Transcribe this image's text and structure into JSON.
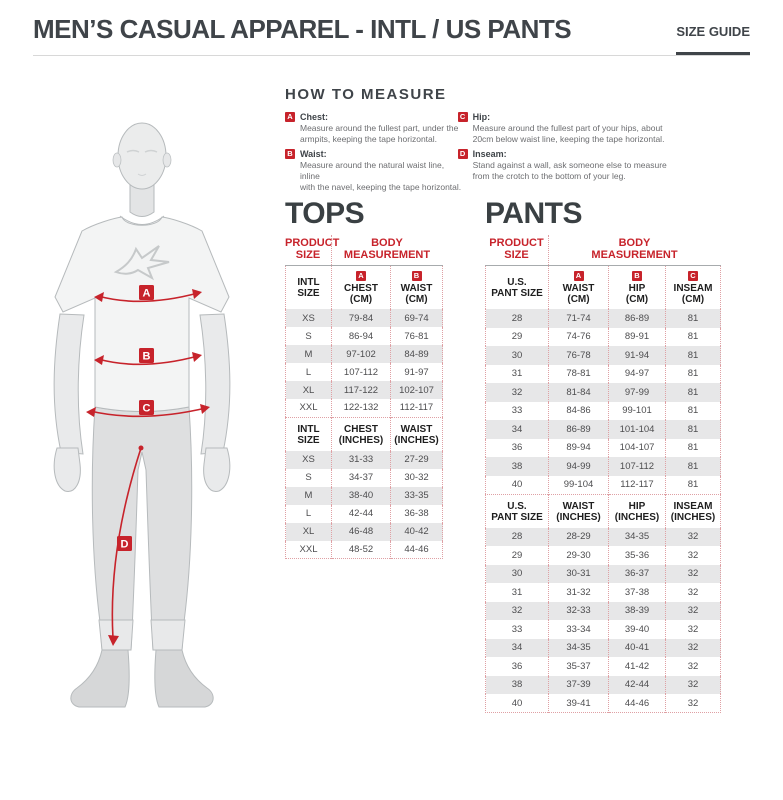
{
  "page": {
    "title": "MEN’S CASUAL APPAREL - INTL / US PANTS",
    "size_guide_label": "SIZE GUIDE"
  },
  "colors": {
    "accent_red": "#c7232b",
    "heading_dark": "#3f4449",
    "row_stripe": "#e7e7e8"
  },
  "how_to_measure": {
    "title": "HOW TO MEASURE",
    "items": [
      {
        "badge": "A",
        "label": "Chest:",
        "text": "Measure around the fullest part, under the\narmpits, keeping the tape horizontal."
      },
      {
        "badge": "B",
        "label": "Waist:",
        "text": "Measure around the natural waist line, inline\nwith the navel, keeping the tape horizontal."
      },
      {
        "badge": "C",
        "label": "Hip:",
        "text": "Measure around the fullest part of your hips, about\n20cm below waist line, keeping the tape horizontal."
      },
      {
        "badge": "D",
        "label": "Inseam:",
        "text": "Stand against a wall, ask someone else to measure\nfrom the crotch to the bottom of your leg."
      }
    ]
  },
  "figure": {
    "labels": [
      "A",
      "B",
      "C",
      "D"
    ]
  },
  "tops": {
    "title": "TOPS",
    "header_product": "PRODUCT\nSIZE",
    "header_body": "BODY\nMEASUREMENT",
    "cm": {
      "size_label": "INTL\nSIZE",
      "columns": [
        {
          "badge": "A",
          "label": "CHEST\n(CM)"
        },
        {
          "badge": "B",
          "label": "WAIST\n(CM)"
        }
      ],
      "rows": [
        [
          "XS",
          "79-84",
          "69-74"
        ],
        [
          "S",
          "86-94",
          "76-81"
        ],
        [
          "M",
          "97-102",
          "84-89"
        ],
        [
          "L",
          "107-112",
          "91-97"
        ],
        [
          "XL",
          "117-122",
          "102-107"
        ],
        [
          "XXL",
          "122-132",
          "112-117"
        ]
      ]
    },
    "inches": {
      "size_label": "INTL\nSIZE",
      "columns": [
        {
          "label": "CHEST\n(INCHES)"
        },
        {
          "label": "WAIST\n(INCHES)"
        }
      ],
      "rows": [
        [
          "XS",
          "31-33",
          "27-29"
        ],
        [
          "S",
          "34-37",
          "30-32"
        ],
        [
          "M",
          "38-40",
          "33-35"
        ],
        [
          "L",
          "42-44",
          "36-38"
        ],
        [
          "XL",
          "46-48",
          "40-42"
        ],
        [
          "XXL",
          "48-52",
          "44-46"
        ]
      ]
    }
  },
  "pants": {
    "title": "PANTS",
    "header_product": "PRODUCT\nSIZE",
    "header_body": "BODY\nMEASUREMENT",
    "cm": {
      "size_label": "U.S.\nPANT SIZE",
      "columns": [
        {
          "badge": "A",
          "label": "WAIST\n(CM)"
        },
        {
          "badge": "B",
          "label": "HIP\n(CM)"
        },
        {
          "badge": "C",
          "label": "INSEAM\n(CM)"
        }
      ],
      "rows": [
        [
          "28",
          "71-74",
          "86-89",
          "81"
        ],
        [
          "29",
          "74-76",
          "89-91",
          "81"
        ],
        [
          "30",
          "76-78",
          "91-94",
          "81"
        ],
        [
          "31",
          "78-81",
          "94-97",
          "81"
        ],
        [
          "32",
          "81-84",
          "97-99",
          "81"
        ],
        [
          "33",
          "84-86",
          "99-101",
          "81"
        ],
        [
          "34",
          "86-89",
          "101-104",
          "81"
        ],
        [
          "36",
          "89-94",
          "104-107",
          "81"
        ],
        [
          "38",
          "94-99",
          "107-112",
          "81"
        ],
        [
          "40",
          "99-104",
          "112-117",
          "81"
        ]
      ]
    },
    "inches": {
      "size_label": "U.S.\nPANT SIZE",
      "columns": [
        {
          "label": "WAIST\n(INCHES)"
        },
        {
          "label": "HIP\n(INCHES)"
        },
        {
          "label": "INSEAM\n(INCHES)"
        }
      ],
      "rows": [
        [
          "28",
          "28-29",
          "34-35",
          "32"
        ],
        [
          "29",
          "29-30",
          "35-36",
          "32"
        ],
        [
          "30",
          "30-31",
          "36-37",
          "32"
        ],
        [
          "31",
          "31-32",
          "37-38",
          "32"
        ],
        [
          "32",
          "32-33",
          "38-39",
          "32"
        ],
        [
          "33",
          "33-34",
          "39-40",
          "32"
        ],
        [
          "34",
          "34-35",
          "40-41",
          "32"
        ],
        [
          "36",
          "35-37",
          "41-42",
          "32"
        ],
        [
          "38",
          "37-39",
          "42-44",
          "32"
        ],
        [
          "40",
          "39-41",
          "44-46",
          "32"
        ]
      ]
    }
  }
}
